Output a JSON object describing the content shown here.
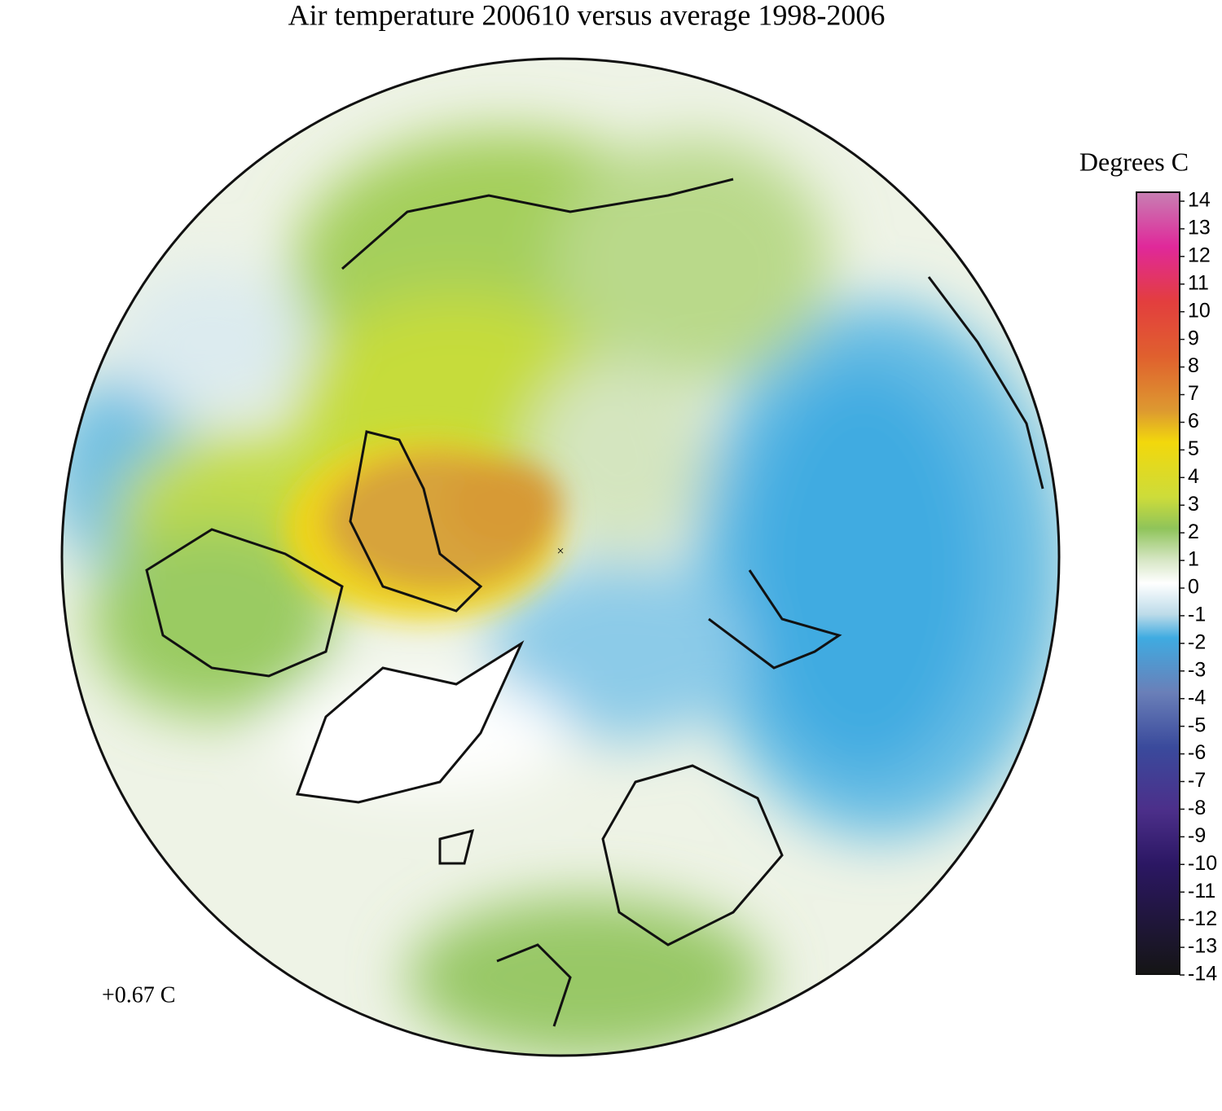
{
  "title": "Air temperature 200610 versus average 1998-2006",
  "colorbar": {
    "label": "Degrees C",
    "ticks": [
      14,
      13,
      12,
      11,
      10,
      9,
      8,
      7,
      6,
      5,
      4,
      3,
      2,
      1,
      0,
      -1,
      -2,
      -3,
      -4,
      -5,
      -6,
      -7,
      -8,
      -9,
      -10,
      -11,
      -12,
      -13,
      -14
    ]
  },
  "annotation": "+0.67 C"
}
